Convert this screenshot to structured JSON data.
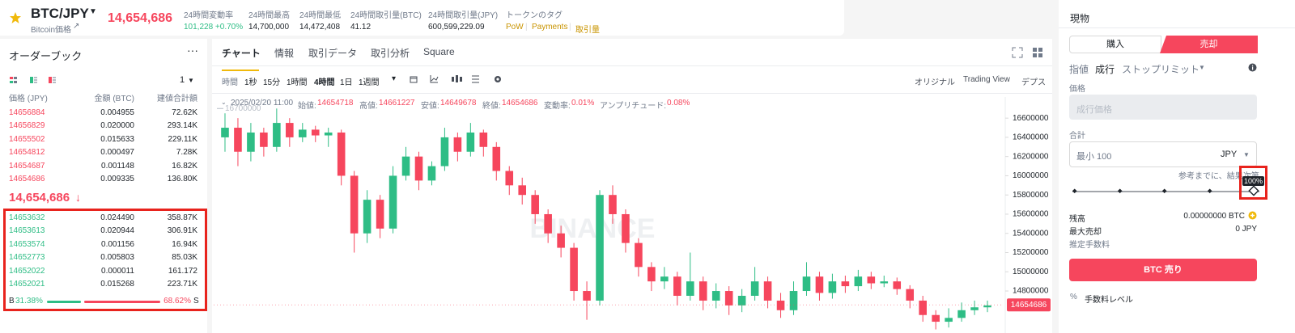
{
  "header": {
    "pair": "BTC/JPY",
    "subtitle": "Bitcoin価格",
    "price": "14,654,686",
    "stats": [
      {
        "label": "24時間変動率",
        "value": "101,228 +0.70%"
      },
      {
        "label": "24時間最高",
        "value": "14,700,000"
      },
      {
        "label": "24時間最低",
        "value": "14,472,408"
      },
      {
        "label": "24時間取引量(BTC)",
        "value": "41.12"
      },
      {
        "label": "24時間取引量(JPY)",
        "value": "600,599,229.09"
      }
    ],
    "tags_label": "トークンのタグ",
    "tags": [
      "PoW",
      "Payments",
      "取引量"
    ]
  },
  "orderbook": {
    "title": "オーダーブック",
    "precision": "1",
    "columns": [
      "価格 (JPY)",
      "金額 (BTC)",
      "建値合計額"
    ],
    "asks": [
      [
        "14656884",
        "0.004955",
        "72.62K"
      ],
      [
        "14656829",
        "0.020000",
        "293.14K"
      ],
      [
        "14655502",
        "0.015633",
        "229.11K"
      ],
      [
        "14654812",
        "0.000497",
        "7.28K"
      ],
      [
        "14654687",
        "0.001148",
        "16.82K"
      ],
      [
        "14654686",
        "0.009335",
        "136.80K"
      ]
    ],
    "last_price": "14,654,686",
    "bids": [
      [
        "14653632",
        "0.024490",
        "358.87K"
      ],
      [
        "14653613",
        "0.020944",
        "306.91K"
      ],
      [
        "14653574",
        "0.001156",
        "16.94K"
      ],
      [
        "14652773",
        "0.005803",
        "85.03K"
      ],
      [
        "14652022",
        "0.000011",
        "161.172"
      ],
      [
        "14652021",
        "0.015268",
        "223.71K"
      ]
    ],
    "buy_label": "B",
    "buy_ratio": {
      "value": 31.38,
      "label": "31.38%"
    },
    "sell_ratio": {
      "value": 68.62,
      "label": "68.62%"
    },
    "sell_label": "S"
  },
  "chart": {
    "tabs": [
      "チャート",
      "情報",
      "取引データ",
      "取引分析",
      "Square"
    ],
    "intervals": [
      "時間",
      "1秒",
      "15分",
      "1時間",
      "4時間",
      "1日",
      "1週間"
    ],
    "views": [
      "オリジナル",
      "Trading View",
      "デプス"
    ],
    "ohlc_date": "2025/02/20 11:00",
    "ohlc": [
      {
        "label": "始値:",
        "value": "14654718"
      },
      {
        "label": "高値:",
        "value": "14661227"
      },
      {
        "label": "安値:",
        "value": "14649678"
      },
      {
        "label": "終値:",
        "value": "14654686"
      },
      {
        "label": "変動率:",
        "value": "0.01%"
      },
      {
        "label": "アンプリチュード:",
        "value": "0.08%"
      }
    ],
    "watermark": "BINANCE"
  },
  "chart_data": {
    "type": "candlestick",
    "up_color": "#2ebd85",
    "down_color": "#f6465d",
    "ylim": [
      14430000,
      16820000
    ],
    "yticks": [
      14800000,
      15000000,
      15200000,
      15400000,
      15600000,
      15800000,
      16000000,
      16200000,
      16400000,
      16600000
    ],
    "max_marker": 16700000,
    "last_price": 14654686,
    "candles": [
      [
        16400000,
        16650000,
        16250000,
        16500000
      ],
      [
        16500000,
        16600000,
        16100000,
        16250000
      ],
      [
        16250000,
        16550000,
        16150000,
        16450000
      ],
      [
        16450000,
        16500000,
        16200000,
        16300000
      ],
      [
        16300000,
        16700000,
        16250000,
        16550000
      ],
      [
        16550000,
        16600000,
        16300000,
        16400000
      ],
      [
        16400000,
        16550000,
        16350000,
        16480000
      ],
      [
        16480000,
        16520000,
        16350000,
        16420000
      ],
      [
        16420000,
        16500000,
        16300000,
        16450000
      ],
      [
        16450000,
        16480000,
        15900000,
        16000000
      ],
      [
        16000000,
        16050000,
        15200000,
        15400000
      ],
      [
        15400000,
        15850000,
        15300000,
        15750000
      ],
      [
        15750000,
        15800000,
        15350000,
        15450000
      ],
      [
        15450000,
        16100000,
        15400000,
        16000000
      ],
      [
        16000000,
        16300000,
        15950000,
        16200000
      ],
      [
        16200000,
        16250000,
        15850000,
        15950000
      ],
      [
        15950000,
        16150000,
        15900000,
        16100000
      ],
      [
        16100000,
        16500000,
        16050000,
        16400000
      ],
      [
        16400000,
        16450000,
        16150000,
        16250000
      ],
      [
        16250000,
        16550000,
        16200000,
        16450000
      ],
      [
        16450000,
        16480000,
        16200000,
        16300000
      ],
      [
        16300000,
        16350000,
        15950000,
        16050000
      ],
      [
        16050000,
        16100000,
        15800000,
        15900000
      ],
      [
        15900000,
        15980000,
        15700000,
        15800000
      ],
      [
        15800000,
        15850000,
        15500000,
        15600000
      ],
      [
        15600000,
        15650000,
        15300000,
        15400000
      ],
      [
        15400000,
        15480000,
        15150000,
        15250000
      ],
      [
        15250000,
        15300000,
        14700000,
        14800000
      ],
      [
        14800000,
        14900000,
        14500000,
        14700000
      ],
      [
        14700000,
        15850000,
        14650000,
        15800000
      ],
      [
        15800000,
        15900000,
        15500000,
        15600000
      ],
      [
        15600000,
        15650000,
        15200000,
        15300000
      ],
      [
        15300000,
        15350000,
        14950000,
        15050000
      ],
      [
        15050000,
        15100000,
        14800000,
        14900000
      ],
      [
        14900000,
        15050000,
        14820000,
        14950000
      ],
      [
        14950000,
        15000000,
        14650000,
        14750000
      ],
      [
        14750000,
        15200000,
        14700000,
        14900000
      ],
      [
        14900000,
        14950000,
        14600000,
        14700000
      ],
      [
        14700000,
        14880000,
        14620000,
        14800000
      ],
      [
        14800000,
        14850000,
        14550000,
        14650000
      ],
      [
        14650000,
        14820000,
        14580000,
        14750000
      ],
      [
        14750000,
        15050000,
        14700000,
        14900000
      ],
      [
        14900000,
        14950000,
        14620000,
        14700000
      ],
      [
        14700000,
        14780000,
        14520000,
        14600000
      ],
      [
        14600000,
        14900000,
        14550000,
        14800000
      ],
      [
        14800000,
        15100000,
        14750000,
        14950000
      ],
      [
        14950000,
        15000000,
        14700000,
        14780000
      ],
      [
        14780000,
        14980000,
        14720000,
        14900000
      ],
      [
        14900000,
        14960000,
        14780000,
        14850000
      ],
      [
        14850000,
        15020000,
        14800000,
        14950000
      ],
      [
        14950000,
        15000000,
        14820000,
        14880000
      ],
      [
        14880000,
        14960000,
        14840000,
        14900000
      ],
      [
        14900000,
        14940000,
        14760000,
        14820000
      ],
      [
        14820000,
        14860000,
        14620000,
        14700000
      ],
      [
        14700000,
        14750000,
        14480000,
        14550000
      ],
      [
        14550000,
        14600000,
        14400000,
        14480000
      ],
      [
        14480000,
        14620000,
        14420000,
        14520000
      ],
      [
        14520000,
        14680000,
        14480000,
        14600000
      ],
      [
        14600000,
        14700000,
        14550000,
        14630000
      ],
      [
        14630000,
        14700000,
        14580000,
        14650000
      ]
    ]
  },
  "trade_panel": {
    "title": "現物",
    "buy_tab": "購入",
    "sell_tab": "売却",
    "order_types": [
      "指値",
      "成行",
      "ストップリミット"
    ],
    "price_label": "価格",
    "price_placeholder": "成行価格",
    "total_label": "合計",
    "total_placeholder": "最小 100",
    "currency": "JPY",
    "note": "参考までに、結果次第",
    "slider_tip": "100%",
    "balance_label": "残高",
    "balance_value": "0.00000000 BTC",
    "max_sell_label": "最大売却",
    "max_sell_value": "0 JPY",
    "fee_label": "推定手数料",
    "submit": "BTC 売り",
    "fee_level": "手数料レベル"
  }
}
